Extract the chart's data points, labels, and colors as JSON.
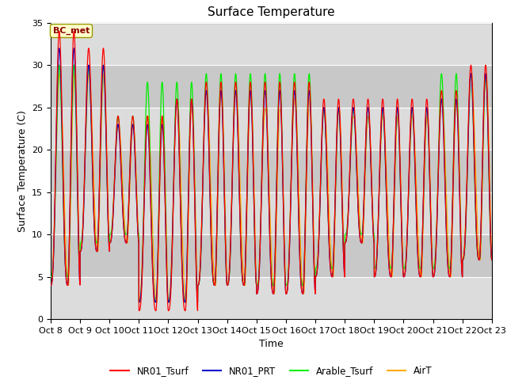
{
  "title": "Surface Temperature",
  "ylabel": "Surface Temperature (C)",
  "xlabel": "Time",
  "ylim": [
    0,
    35
  ],
  "annotation": "BC_met",
  "tick_labels": [
    "Oct 8",
    "Oct 9",
    "Oct 10",
    "Oct 11",
    "Oct 12",
    "Oct 13",
    "Oct 14",
    "Oct 15",
    "Oct 16",
    "Oct 17",
    "Oct 18",
    "Oct 19",
    "Oct 20",
    "Oct 21",
    "Oct 22",
    "Oct 23"
  ],
  "legend": [
    {
      "label": "NR01_Tsurf",
      "color": "#ff0000"
    },
    {
      "label": "NR01_PRT",
      "color": "#0000cc"
    },
    {
      "label": "Arable_Tsurf",
      "color": "#00ee00"
    },
    {
      "label": "AirT",
      "color": "#ffaa00"
    }
  ],
  "bg_color": "#dcdcdc",
  "bg_color2": "#c8c8c8",
  "fig_bg": "#ffffff",
  "title_fontsize": 11,
  "axis_fontsize": 9,
  "tick_fontsize": 8,
  "n_days": 15,
  "n_points": 3600,
  "peaks_nr01": [
    34,
    32,
    24,
    24,
    26,
    28,
    28,
    28,
    28,
    26,
    26,
    26,
    26,
    27,
    30,
    30
  ],
  "mins_nr01": [
    4,
    8,
    9,
    1,
    1,
    4,
    4,
    3,
    3,
    5,
    9,
    5,
    5,
    5,
    7,
    7
  ],
  "peaks_prt": [
    32,
    30,
    23,
    23,
    26,
    27,
    27,
    27,
    27,
    25,
    25,
    25,
    25,
    26,
    29,
    29
  ],
  "mins_prt": [
    4,
    8,
    9,
    2,
    2,
    4,
    4,
    3,
    3,
    5,
    9,
    5,
    5,
    5,
    7,
    7
  ],
  "peaks_arable": [
    30,
    30,
    24,
    28,
    28,
    29,
    29,
    29,
    29,
    25,
    25,
    25,
    25,
    29,
    29,
    29
  ],
  "mins_arable": [
    5,
    9,
    10,
    2,
    2,
    4,
    4,
    4,
    4,
    6,
    10,
    6,
    6,
    6,
    7,
    7
  ],
  "peaks_airt": [
    29,
    29,
    23,
    24,
    26,
    27,
    27,
    25,
    26,
    25,
    24,
    24,
    24,
    26,
    29,
    29
  ],
  "mins_airt": [
    4,
    8,
    9,
    2,
    2,
    4,
    4,
    3,
    3,
    5,
    9,
    5,
    5,
    5,
    7,
    7
  ],
  "peak_time": 0.58,
  "sharpness": 3.0
}
